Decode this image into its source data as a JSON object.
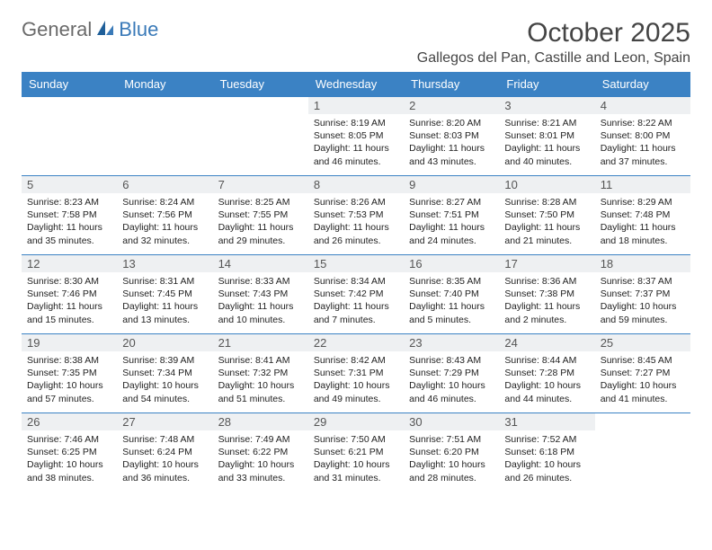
{
  "brand": {
    "general": "General",
    "blue": "Blue"
  },
  "colors": {
    "header_bg": "#3b82c4",
    "header_text": "#ffffff",
    "daynum_bg": "#eef0f2",
    "border": "#3b82c4",
    "logo_gray": "#6a6a6a",
    "logo_blue": "#3a7ab8"
  },
  "title": "October 2025",
  "location": "Gallegos del Pan, Castille and Leon, Spain",
  "weekdays": [
    "Sunday",
    "Monday",
    "Tuesday",
    "Wednesday",
    "Thursday",
    "Friday",
    "Saturday"
  ],
  "weeks": [
    [
      null,
      null,
      null,
      {
        "n": "1",
        "sr": "8:19 AM",
        "ss": "8:05 PM",
        "dl": "11 hours and 46 minutes."
      },
      {
        "n": "2",
        "sr": "8:20 AM",
        "ss": "8:03 PM",
        "dl": "11 hours and 43 minutes."
      },
      {
        "n": "3",
        "sr": "8:21 AM",
        "ss": "8:01 PM",
        "dl": "11 hours and 40 minutes."
      },
      {
        "n": "4",
        "sr": "8:22 AM",
        "ss": "8:00 PM",
        "dl": "11 hours and 37 minutes."
      }
    ],
    [
      {
        "n": "5",
        "sr": "8:23 AM",
        "ss": "7:58 PM",
        "dl": "11 hours and 35 minutes."
      },
      {
        "n": "6",
        "sr": "8:24 AM",
        "ss": "7:56 PM",
        "dl": "11 hours and 32 minutes."
      },
      {
        "n": "7",
        "sr": "8:25 AM",
        "ss": "7:55 PM",
        "dl": "11 hours and 29 minutes."
      },
      {
        "n": "8",
        "sr": "8:26 AM",
        "ss": "7:53 PM",
        "dl": "11 hours and 26 minutes."
      },
      {
        "n": "9",
        "sr": "8:27 AM",
        "ss": "7:51 PM",
        "dl": "11 hours and 24 minutes."
      },
      {
        "n": "10",
        "sr": "8:28 AM",
        "ss": "7:50 PM",
        "dl": "11 hours and 21 minutes."
      },
      {
        "n": "11",
        "sr": "8:29 AM",
        "ss": "7:48 PM",
        "dl": "11 hours and 18 minutes."
      }
    ],
    [
      {
        "n": "12",
        "sr": "8:30 AM",
        "ss": "7:46 PM",
        "dl": "11 hours and 15 minutes."
      },
      {
        "n": "13",
        "sr": "8:31 AM",
        "ss": "7:45 PM",
        "dl": "11 hours and 13 minutes."
      },
      {
        "n": "14",
        "sr": "8:33 AM",
        "ss": "7:43 PM",
        "dl": "11 hours and 10 minutes."
      },
      {
        "n": "15",
        "sr": "8:34 AM",
        "ss": "7:42 PM",
        "dl": "11 hours and 7 minutes."
      },
      {
        "n": "16",
        "sr": "8:35 AM",
        "ss": "7:40 PM",
        "dl": "11 hours and 5 minutes."
      },
      {
        "n": "17",
        "sr": "8:36 AM",
        "ss": "7:38 PM",
        "dl": "11 hours and 2 minutes."
      },
      {
        "n": "18",
        "sr": "8:37 AM",
        "ss": "7:37 PM",
        "dl": "10 hours and 59 minutes."
      }
    ],
    [
      {
        "n": "19",
        "sr": "8:38 AM",
        "ss": "7:35 PM",
        "dl": "10 hours and 57 minutes."
      },
      {
        "n": "20",
        "sr": "8:39 AM",
        "ss": "7:34 PM",
        "dl": "10 hours and 54 minutes."
      },
      {
        "n": "21",
        "sr": "8:41 AM",
        "ss": "7:32 PM",
        "dl": "10 hours and 51 minutes."
      },
      {
        "n": "22",
        "sr": "8:42 AM",
        "ss": "7:31 PM",
        "dl": "10 hours and 49 minutes."
      },
      {
        "n": "23",
        "sr": "8:43 AM",
        "ss": "7:29 PM",
        "dl": "10 hours and 46 minutes."
      },
      {
        "n": "24",
        "sr": "8:44 AM",
        "ss": "7:28 PM",
        "dl": "10 hours and 44 minutes."
      },
      {
        "n": "25",
        "sr": "8:45 AM",
        "ss": "7:27 PM",
        "dl": "10 hours and 41 minutes."
      }
    ],
    [
      {
        "n": "26",
        "sr": "7:46 AM",
        "ss": "6:25 PM",
        "dl": "10 hours and 38 minutes."
      },
      {
        "n": "27",
        "sr": "7:48 AM",
        "ss": "6:24 PM",
        "dl": "10 hours and 36 minutes."
      },
      {
        "n": "28",
        "sr": "7:49 AM",
        "ss": "6:22 PM",
        "dl": "10 hours and 33 minutes."
      },
      {
        "n": "29",
        "sr": "7:50 AM",
        "ss": "6:21 PM",
        "dl": "10 hours and 31 minutes."
      },
      {
        "n": "30",
        "sr": "7:51 AM",
        "ss": "6:20 PM",
        "dl": "10 hours and 28 minutes."
      },
      {
        "n": "31",
        "sr": "7:52 AM",
        "ss": "6:18 PM",
        "dl": "10 hours and 26 minutes."
      },
      null
    ]
  ],
  "labels": {
    "sunrise": "Sunrise: ",
    "sunset": "Sunset: ",
    "daylight": "Daylight: "
  }
}
